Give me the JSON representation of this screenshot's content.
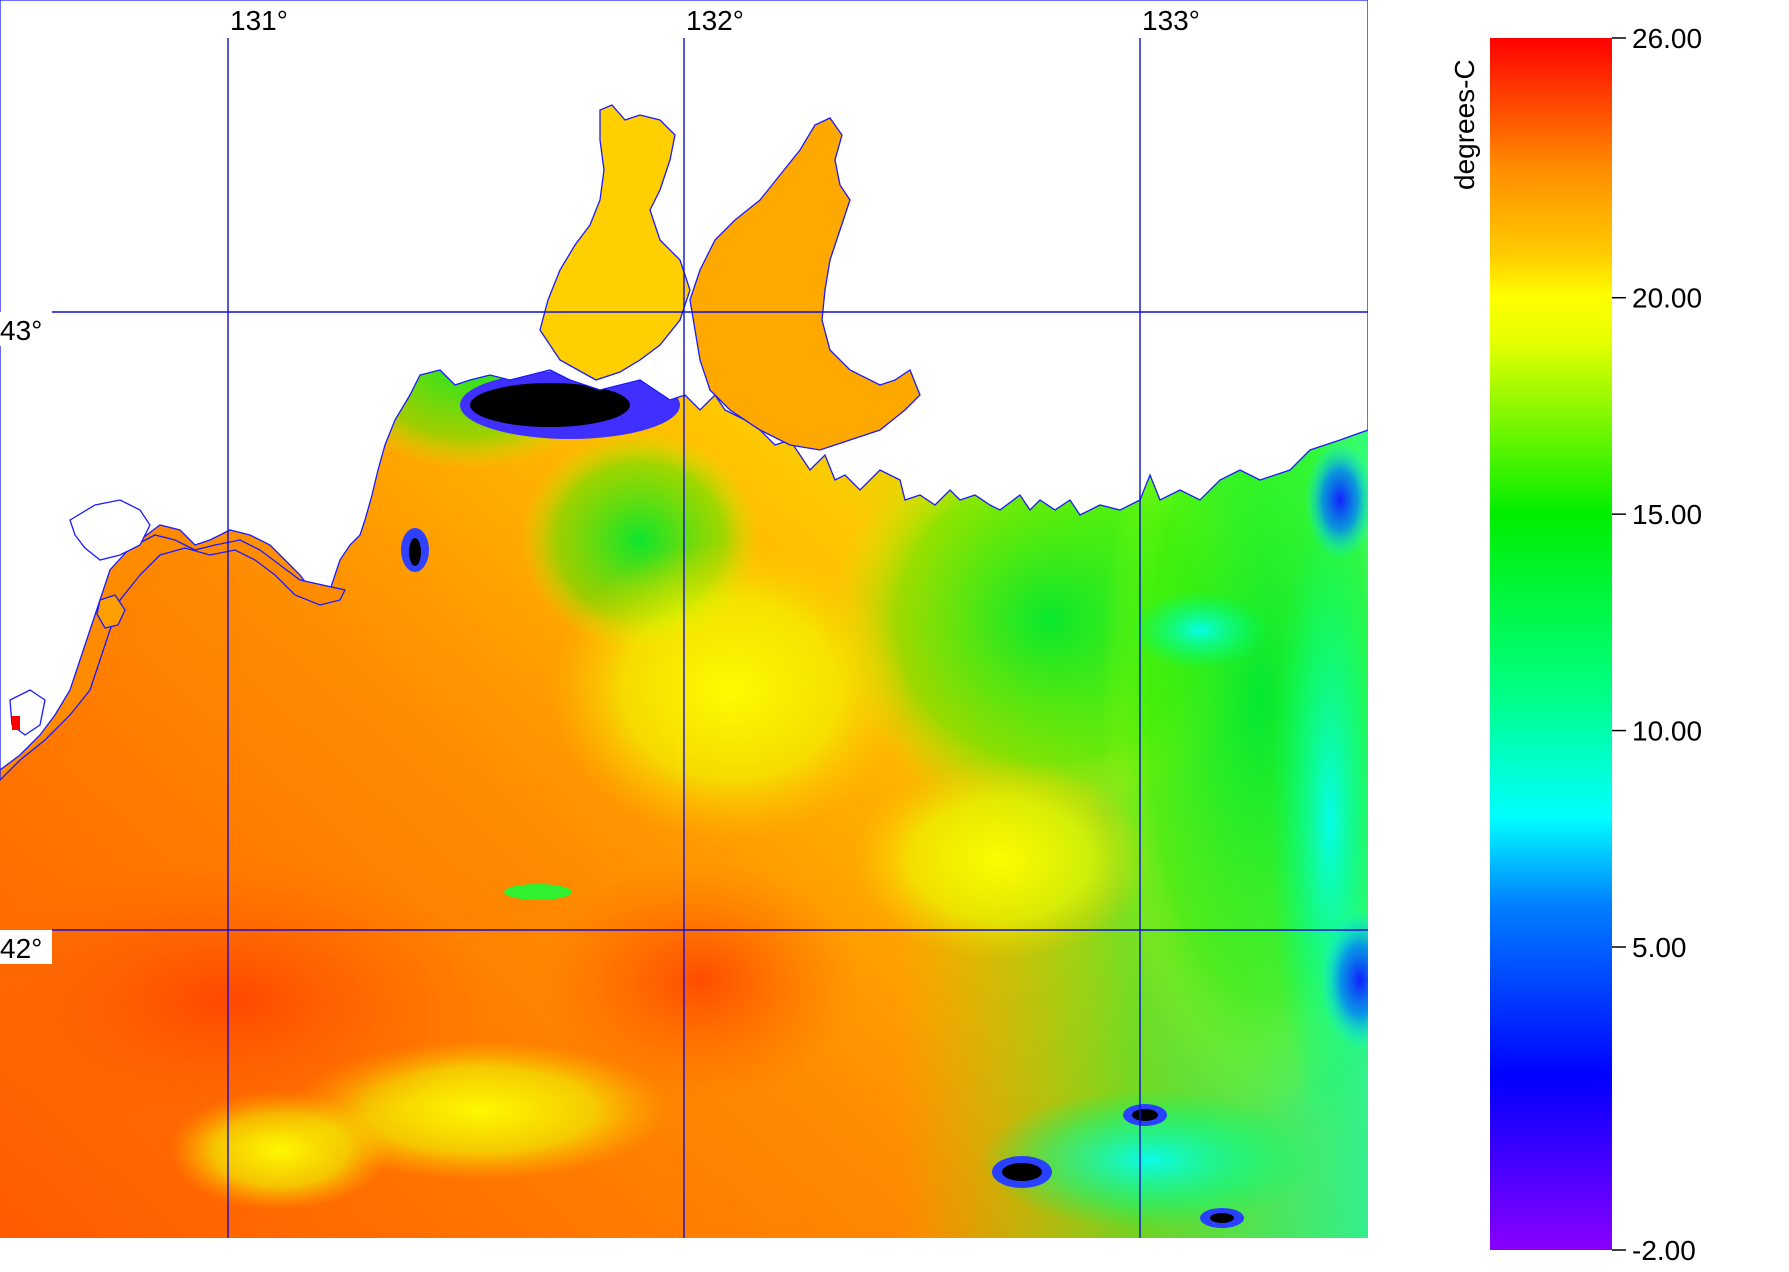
{
  "map": {
    "longitude_labels": [
      "131°",
      "132°",
      "133°"
    ],
    "latitude_labels": [
      "43°",
      "42°"
    ]
  },
  "colorbar": {
    "unit_label": "degrees-C",
    "ticks": [
      "26.00",
      "20.00",
      "15.00",
      "10.00",
      "5.00",
      "-2.00"
    ],
    "min": -2,
    "max": 26,
    "gradient_stops": [
      {
        "value": -2,
        "color": "#8a00ff"
      },
      {
        "value": 2,
        "color": "#0000ff"
      },
      {
        "value": 6,
        "color": "#0080ff"
      },
      {
        "value": 8,
        "color": "#00ffff"
      },
      {
        "value": 11,
        "color": "#00ff80"
      },
      {
        "value": 15,
        "color": "#00ee00"
      },
      {
        "value": 19,
        "color": "#e6ff00"
      },
      {
        "value": 20,
        "color": "#ffff00"
      },
      {
        "value": 21,
        "color": "#ffcc00"
      },
      {
        "value": 23,
        "color": "#ff8c00"
      },
      {
        "value": 26,
        "color": "#ff0000"
      }
    ]
  },
  "colors": {
    "land": "#ffffff",
    "grid": "#1010d0",
    "coastline": "#1a1aff",
    "cloud_mask": "#000000"
  }
}
